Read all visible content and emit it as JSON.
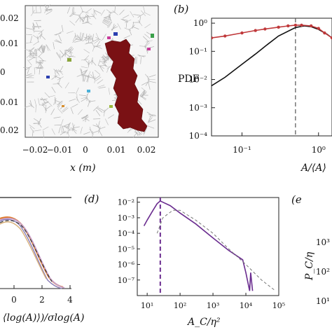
{
  "panel_a": {
    "y_ticks": [
      "0.02",
      "0.01",
      "0",
      "0.01",
      "0.02"
    ],
    "x_ticks": [
      "−0.02",
      "−0.01",
      "0",
      "0.01",
      "0.02"
    ],
    "xlabel": "x (m)"
  },
  "panel_b": {
    "label": "(b)",
    "ylabel": "PDF",
    "xlabel": "A/⟨A⟩",
    "y_ticks": [
      "10⁰",
      "10⁻¹",
      "10⁻²",
      "10⁻³",
      "10⁻⁴"
    ],
    "x_ticks": [
      "10⁻¹",
      "10⁰"
    ]
  },
  "panel_c": {
    "x_ticks": [
      "0",
      "2",
      "4"
    ],
    "xlabel": "⟨log(A)⟩)/σlog(A)"
  },
  "panel_d": {
    "label": "(d)",
    "xlabel": "A_C/η²",
    "y_ticks": [
      "10⁻²",
      "10⁻³",
      "10⁻⁴",
      "10⁻⁵",
      "10⁻⁶",
      "10⁻⁷"
    ],
    "x_ticks": [
      "10¹",
      "10²",
      "10³",
      "10⁴",
      "10⁵"
    ]
  },
  "panel_e": {
    "label": "(e",
    "ylabel": "P_C/η",
    "y_ticks": [
      "10³",
      "10²",
      "10¹"
    ]
  },
  "chart_data": [
    {
      "type": "line",
      "panel": "b",
      "xscale": "log",
      "yscale": "log",
      "xlim": [
        0.04,
        1.5
      ],
      "ylim": [
        0.0001,
        1.5
      ],
      "vline_x": 0.5,
      "series": [
        {
          "color": "#111111",
          "x": [
            0.04,
            0.06,
            0.1,
            0.15,
            0.2,
            0.3,
            0.5,
            0.65,
            0.8,
            1.0,
            1.3,
            1.5
          ],
          "y": [
            0.006,
            0.012,
            0.035,
            0.08,
            0.15,
            0.35,
            0.7,
            0.8,
            0.75,
            0.6,
            0.4,
            0.3
          ]
        },
        {
          "color": "#c0393b",
          "x": [
            0.04,
            0.06,
            0.1,
            0.15,
            0.2,
            0.3,
            0.4,
            0.5,
            0.6,
            0.8,
            1.0,
            1.2,
            1.5
          ],
          "y": [
            0.3,
            0.35,
            0.45,
            0.55,
            0.62,
            0.72,
            0.8,
            0.85,
            0.85,
            0.8,
            0.65,
            0.45,
            0.3
          ]
        }
      ]
    },
    {
      "type": "line",
      "panel": "d",
      "xscale": "log",
      "yscale": "log",
      "xlim": [
        5,
        100000
      ],
      "ylim": [
        1e-08,
        0.02
      ],
      "vline_x": 25,
      "series": [
        {
          "color": "#6a2c8f",
          "x": [
            8,
            10,
            15,
            20,
            25,
            30,
            50,
            100,
            300,
            1000,
            3000,
            8000,
            10000,
            13000,
            14000,
            16000
          ],
          "y": [
            0.0003,
            0.0007,
            0.003,
            0.008,
            0.012,
            0.01,
            0.006,
            0.002,
            0.0004,
            5e-05,
            8e-06,
            2e-06,
            3e-07,
            2e-08,
            3e-07,
            2e-08
          ]
        },
        {
          "color": "#777777",
          "dashed": true,
          "x": [
            20,
            30,
            60,
            100,
            300,
            1000,
            3000,
            10000,
            30000,
            80000
          ],
          "y": [
            0.0001,
            0.001,
            0.003,
            0.003,
            0.0007,
            0.0001,
            1e-05,
            1e-06,
            1e-07,
            2e-08
          ]
        }
      ]
    }
  ]
}
